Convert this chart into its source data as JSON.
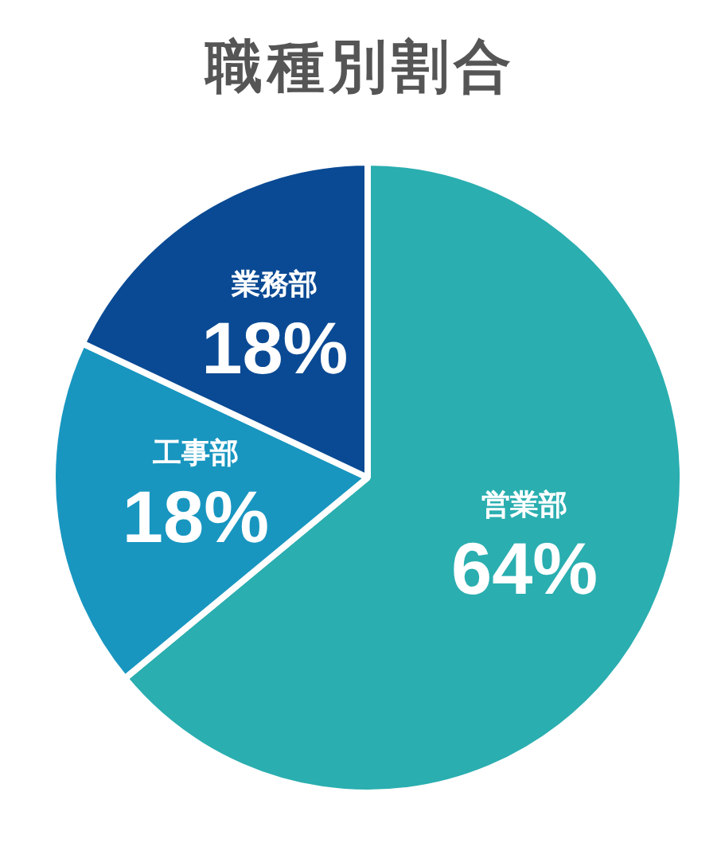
{
  "chart_data": {
    "type": "pie",
    "title": "職種別割合",
    "categories": [
      "営業部",
      "工事部",
      "業務部"
    ],
    "values": [
      64,
      18,
      18
    ],
    "colors": [
      "#2aaeb0",
      "#1896c0",
      "#0a4a94"
    ],
    "value_labels": [
      "64%",
      "18%",
      "18%"
    ],
    "legend": false
  }
}
